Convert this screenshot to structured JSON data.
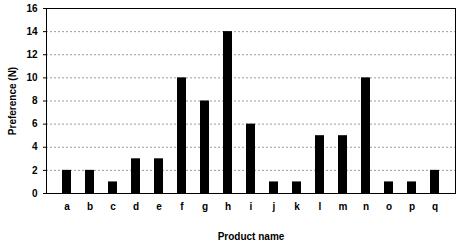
{
  "chart_data": {
    "type": "bar",
    "x_label": "Product name",
    "y_label": "Preference (N)",
    "categories": [
      "a",
      "b",
      "c",
      "d",
      "e",
      "f",
      "g",
      "h",
      "i",
      "j",
      "k",
      "l",
      "m",
      "n",
      "o",
      "p",
      "q"
    ],
    "values": [
      2,
      2,
      1,
      3,
      3,
      10,
      8,
      14,
      6,
      1,
      1,
      5,
      5,
      10,
      1,
      1,
      2
    ],
    "color": "#000000",
    "ylim": [
      0,
      16
    ],
    "yticks": [
      0,
      2,
      4,
      6,
      8,
      10,
      12,
      14,
      16
    ],
    "grid": true
  }
}
